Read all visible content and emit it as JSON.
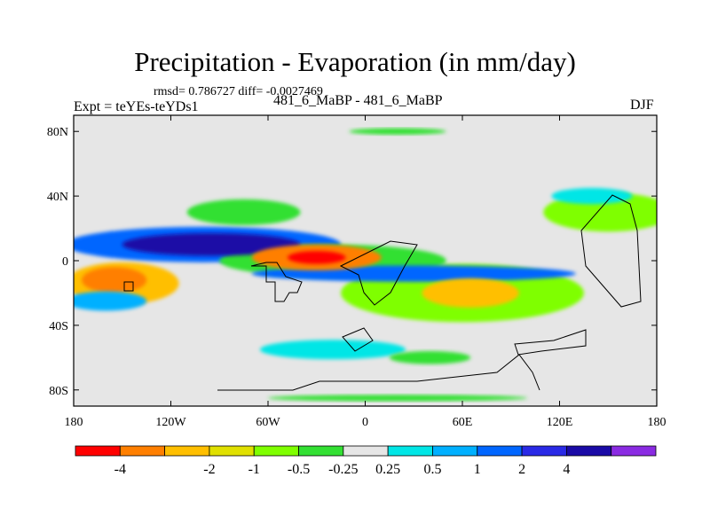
{
  "chart_data": {
    "type": "heatmap",
    "title": "Precipitation - Evaporation (in mm/day)",
    "stats": "rmsd= 0.786727 diff= -0.0027469",
    "left_label": "Expt = teYEs-teYDs1",
    "center_label": "481_6_MaBP - 481_6_MaBP",
    "right_label": "DJF",
    "x_ticks": [
      {
        "label": "180",
        "lon": -180
      },
      {
        "label": "120W",
        "lon": -120
      },
      {
        "label": "60W",
        "lon": -60
      },
      {
        "label": "0",
        "lon": 0
      },
      {
        "label": "60E",
        "lon": 60
      },
      {
        "label": "120E",
        "lon": 120
      },
      {
        "label": "180",
        "lon": 180
      }
    ],
    "y_ticks": [
      {
        "label": "80N",
        "lat": 80
      },
      {
        "label": "40N",
        "lat": 40
      },
      {
        "label": "0",
        "lat": 0
      },
      {
        "label": "40S",
        "lat": -40
      },
      {
        "label": "80S",
        "lat": -80
      }
    ],
    "xlim": [
      -180,
      180
    ],
    "ylim": [
      -90,
      90
    ],
    "colorbar": {
      "colors": [
        "#ff0000",
        "#ff7f00",
        "#ffbf00",
        "#e0e000",
        "#7fff00",
        "#33e033",
        "#e6e6e6",
        "#00e6e6",
        "#00b0ff",
        "#0066ff",
        "#2a2ae6",
        "#1a0aa6",
        "#8a2be2"
      ],
      "labels": [
        "-4",
        "-2",
        "-1",
        "-0.5",
        "-0.25",
        "0.25",
        "0.5",
        "1",
        "2",
        "4"
      ],
      "label_boundaries": [
        1,
        3,
        4,
        5,
        6,
        7,
        8,
        9,
        10,
        11
      ]
    },
    "features": [
      {
        "name": "itcz-drying",
        "lon": -30,
        "lat": 2,
        "rx": 18,
        "ry": 4,
        "color": "#ff0000"
      },
      {
        "name": "itcz-drying-halo",
        "lon": -30,
        "lat": 2,
        "rx": 40,
        "ry": 8,
        "color": "#ff7f00"
      },
      {
        "name": "atlantic-green",
        "lon": -20,
        "lat": 0,
        "rx": 70,
        "ry": 10,
        "color": "#33e033"
      },
      {
        "name": "pacific-wet-band",
        "lon": -95,
        "lat": 10,
        "rx": 55,
        "ry": 7,
        "color": "#1a0aa6"
      },
      {
        "name": "pacific-wet-halo",
        "lon": -100,
        "lat": 10,
        "rx": 85,
        "ry": 11,
        "color": "#0066ff"
      },
      {
        "name": "south-pacific-orange",
        "lon": -155,
        "lat": -12,
        "rx": 20,
        "ry": 8,
        "color": "#ff7f00"
      },
      {
        "name": "south-pacific-yellow",
        "lon": -150,
        "lat": -14,
        "rx": 35,
        "ry": 13,
        "color": "#ffbf00"
      },
      {
        "name": "indian-yellow",
        "lon": 65,
        "lat": -20,
        "rx": 30,
        "ry": 9,
        "color": "#ffbf00"
      },
      {
        "name": "indian-green",
        "lon": 60,
        "lat": -20,
        "rx": 75,
        "ry": 18,
        "color": "#7fff00"
      },
      {
        "name": "indian-blue-band",
        "lon": 30,
        "lat": -8,
        "rx": 100,
        "ry": 5,
        "color": "#0066ff"
      },
      {
        "name": "north-pacific-green",
        "lon": -75,
        "lat": 30,
        "rx": 35,
        "ry": 8,
        "color": "#33e033"
      },
      {
        "name": "west-pacific-green",
        "lon": 150,
        "lat": 30,
        "rx": 40,
        "ry": 12,
        "color": "#7fff00"
      },
      {
        "name": "west-pacific-cyan",
        "lon": 140,
        "lat": 40,
        "rx": 25,
        "ry": 5,
        "color": "#00e6e6"
      },
      {
        "name": "southern-ocean-green",
        "lon": 40,
        "lat": -60,
        "rx": 25,
        "ry": 4,
        "color": "#33e033"
      },
      {
        "name": "southern-ocean-cyan",
        "lon": -20,
        "lat": -55,
        "rx": 45,
        "ry": 6,
        "color": "#00e6e6"
      },
      {
        "name": "south-america-blue",
        "lon": -160,
        "lat": -25,
        "rx": 25,
        "ry": 6,
        "color": "#00b0ff"
      },
      {
        "name": "arctic-green",
        "lon": 20,
        "lat": 80,
        "rx": 30,
        "ry": 2,
        "color": "#33e033"
      },
      {
        "name": "antarctic-green",
        "lon": 20,
        "lat": -85,
        "rx": 80,
        "ry": 2,
        "color": "#33e033"
      }
    ]
  }
}
